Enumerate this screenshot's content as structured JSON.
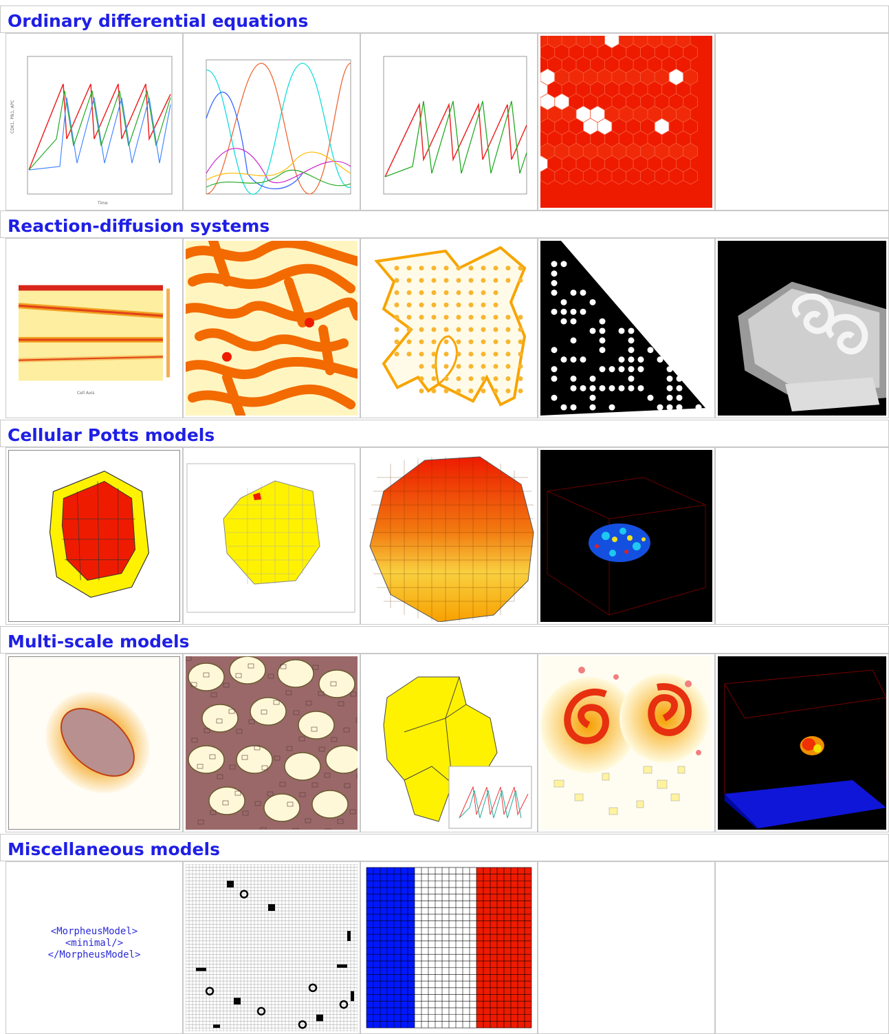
{
  "sections": [
    {
      "title": "Ordinary differential equations"
    },
    {
      "title": "Reaction-diffusion systems"
    },
    {
      "title": "Cellular Potts models"
    },
    {
      "title": "Multi-scale models"
    },
    {
      "title": "Miscellaneous models"
    }
  ],
  "misc": {
    "code_lines": [
      "<MorpheusModel>",
      "<minimal/>",
      "</MorpheusModel>"
    ]
  },
  "colors": {
    "link": "#1f1fe6",
    "red": "#ee1b00",
    "orange": "#f79a00",
    "yellow": "#fff200"
  }
}
